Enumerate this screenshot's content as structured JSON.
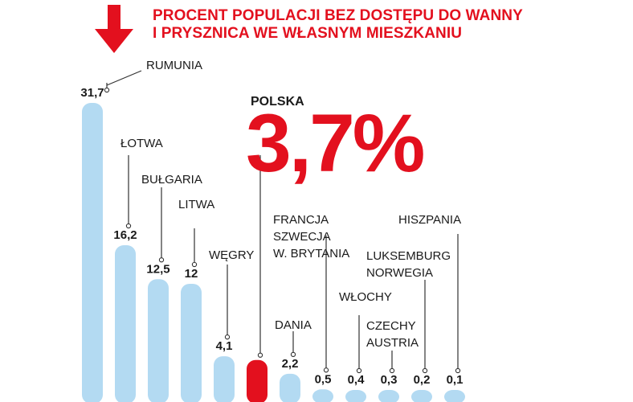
{
  "title": {
    "line1": "PROCENT POPULACJI BEZ DOSTĘPU DO WANNY",
    "line2": "I PRYSZNICA WE WŁASNYM MIESZKANIU"
  },
  "highlight": {
    "label": "POLSKA",
    "value": "3,7%"
  },
  "colors": {
    "accent": "#e3101e",
    "bar": "#b3daf2",
    "text": "#1a1a1a"
  },
  "chart_data": {
    "type": "bar",
    "title": "PROCENT POPULACJI BEZ DOSTĘPU DO WANNY I PRYSZNICA WE WŁASNYM MIESZKANIU",
    "ylim": [
      0,
      31.7
    ],
    "grid": false,
    "categories": [
      [
        "RUMUNIA"
      ],
      [
        "ŁOTWA"
      ],
      [
        "BUŁGARIA"
      ],
      [
        "LITWA"
      ],
      [
        "WĘGRY"
      ],
      [
        "POLSKA"
      ],
      [
        "DANIA"
      ],
      [
        "FRANCJA",
        "SZWECJA",
        "W. BRYTANIA"
      ],
      [
        "WŁOCHY"
      ],
      [
        "CZECHY",
        "AUSTRIA"
      ],
      [
        "LUKSEMBURG",
        "NORWEGIA"
      ],
      [
        "HISZPANIA"
      ]
    ],
    "values": [
      31.7,
      16.2,
      12.5,
      12,
      4.1,
      3.7,
      2.2,
      0.5,
      0.4,
      0.3,
      0.2,
      0.1
    ],
    "value_labels": [
      "31,7",
      "16,2",
      "12,5",
      "12",
      "4,1",
      "",
      "2,2",
      "0,5",
      "0,4",
      "0,3",
      "0,2",
      "0,1"
    ],
    "highlighted_index": 5
  }
}
